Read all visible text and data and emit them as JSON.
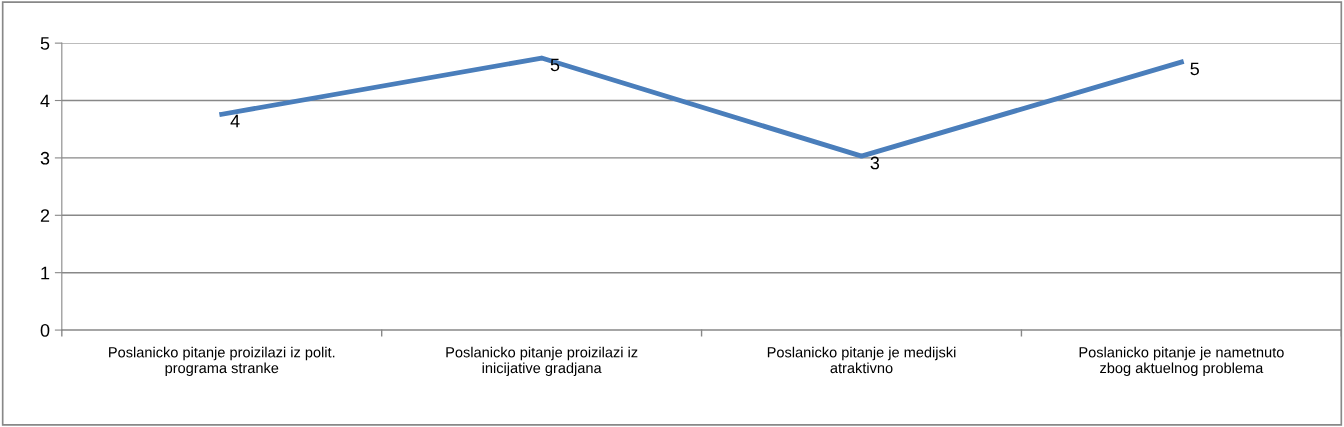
{
  "chart_data": {
    "type": "line",
    "categories": [
      "Poslanicko pitanje proizilazi iz polit.\nprograma stranke",
      "Poslanicko pitanje proizilazi iz\ninicijative gradjana",
      "Poslanicko pitanje je medijski\natraktivno",
      "Poslanicko pitanje je nametnuto\nzbog aktuelnog problema"
    ],
    "series": [
      {
        "color": "#4a7ebb",
        "values": [
          3.76,
          4.74,
          3.03,
          4.67
        ],
        "value_labels": [
          "4",
          "5",
          "3",
          "5"
        ]
      }
    ],
    "ylim": [
      0,
      5
    ],
    "yticks": [
      0,
      1,
      2,
      3,
      4,
      5
    ],
    "grid": "y",
    "legend": false,
    "marker": "none",
    "line_style": "solid"
  }
}
